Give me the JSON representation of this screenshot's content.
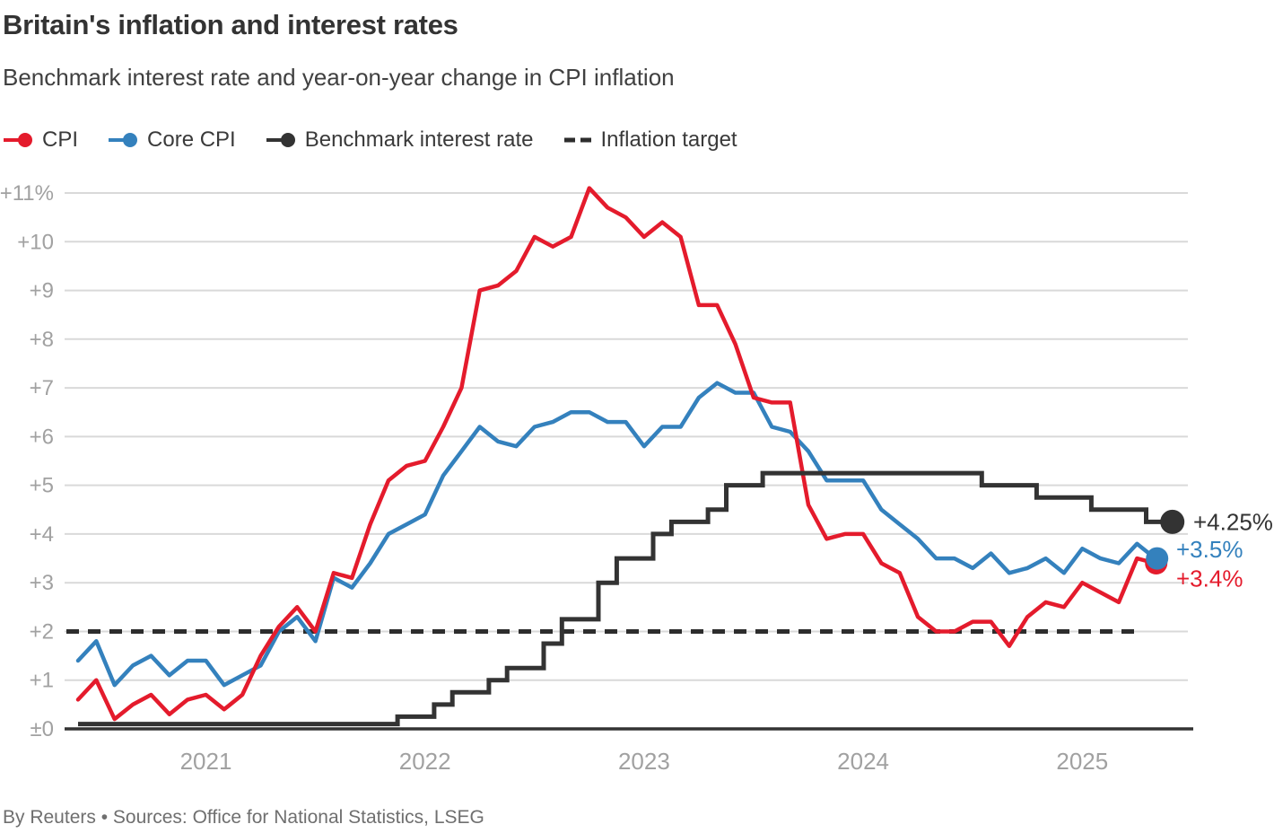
{
  "header": {
    "title": "Britain's inflation and interest rates",
    "subtitle": "Benchmark interest rate and year-on-year change in CPI inflation"
  },
  "legend": [
    {
      "label": "CPI",
      "color": "#e41b2c",
      "marker": "line-dot"
    },
    {
      "label": "Core CPI",
      "color": "#3481bd",
      "marker": "line-dot"
    },
    {
      "label": "Benchmark interest rate",
      "color": "#333333",
      "marker": "line-dot"
    },
    {
      "label": "Inflation target",
      "color": "#2d2d2d",
      "marker": "dashes"
    }
  ],
  "footer": {
    "credit": "By Reuters • Sources: Office for National Statistics, LSEG"
  },
  "chart_data": {
    "type": "line",
    "x_domain": {
      "start": "2020-06",
      "end": "2025-05",
      "freq": "monthly"
    },
    "ylim": [
      0,
      11
    ],
    "grid": "horizontal",
    "y_ticks": [
      "+11%",
      "+10",
      "+9",
      "+8",
      "+7",
      "+6",
      "+5",
      "+4",
      "+3",
      "+2",
      "+1",
      "±0"
    ],
    "x_ticks": [
      {
        "label": "2021",
        "month_index": 7
      },
      {
        "label": "2022",
        "month_index": 19
      },
      {
        "label": "2023",
        "month_index": 31
      },
      {
        "label": "2024",
        "month_index": 43
      },
      {
        "label": "2025",
        "month_index": 55
      }
    ],
    "series": [
      {
        "name": "CPI",
        "color": "#e41b2c",
        "style": "line",
        "end_dot": true,
        "values": [
          0.6,
          1.0,
          0.2,
          0.5,
          0.7,
          0.3,
          0.6,
          0.7,
          0.4,
          0.7,
          1.5,
          2.1,
          2.5,
          2.0,
          3.2,
          3.1,
          4.2,
          5.1,
          5.4,
          5.5,
          6.2,
          7.0,
          9.0,
          9.1,
          9.4,
          10.1,
          9.9,
          10.1,
          11.1,
          10.7,
          10.5,
          10.1,
          10.4,
          10.1,
          8.7,
          8.7,
          7.9,
          6.8,
          6.7,
          6.7,
          4.6,
          3.9,
          4.0,
          4.0,
          3.4,
          3.2,
          2.3,
          2.0,
          2.0,
          2.2,
          2.2,
          1.7,
          2.3,
          2.6,
          2.5,
          3.0,
          2.8,
          2.6,
          3.5,
          3.4
        ]
      },
      {
        "name": "Core CPI",
        "color": "#3481bd",
        "style": "line",
        "end_dot": true,
        "values": [
          1.4,
          1.8,
          0.9,
          1.3,
          1.5,
          1.1,
          1.4,
          1.4,
          0.9,
          1.1,
          1.3,
          2.0,
          2.3,
          1.8,
          3.1,
          2.9,
          3.4,
          4.0,
          4.2,
          4.4,
          5.2,
          5.7,
          6.2,
          5.9,
          5.8,
          6.2,
          6.3,
          6.5,
          6.5,
          6.3,
          6.3,
          5.8,
          6.2,
          6.2,
          6.8,
          7.1,
          6.9,
          6.9,
          6.2,
          6.1,
          5.7,
          5.1,
          5.1,
          5.1,
          4.5,
          4.2,
          3.9,
          3.5,
          3.5,
          3.3,
          3.6,
          3.2,
          3.3,
          3.5,
          3.2,
          3.7,
          3.5,
          3.4,
          3.8,
          3.5
        ]
      },
      {
        "name": "Benchmark interest rate",
        "color": "#333333",
        "style": "step",
        "end_dot": true,
        "values": [
          0.1,
          0.1,
          0.1,
          0.1,
          0.1,
          0.1,
          0.1,
          0.1,
          0.1,
          0.1,
          0.1,
          0.1,
          0.1,
          0.1,
          0.1,
          0.1,
          0.1,
          0.1,
          0.25,
          0.25,
          0.5,
          0.75,
          0.75,
          1.0,
          1.25,
          1.25,
          1.75,
          2.25,
          2.25,
          3.0,
          3.5,
          3.5,
          4.0,
          4.25,
          4.25,
          4.5,
          5.0,
          5.0,
          5.25,
          5.25,
          5.25,
          5.25,
          5.25,
          5.25,
          5.25,
          5.25,
          5.25,
          5.25,
          5.25,
          5.25,
          5.0,
          5.0,
          5.0,
          4.75,
          4.75,
          4.75,
          4.5,
          4.5,
          4.5,
          4.25
        ]
      }
    ],
    "target_line": {
      "label": "Inflation target",
      "value": 2,
      "style": "dashed",
      "color": "#2d2d2d"
    },
    "end_labels": [
      {
        "text": "+4.25%",
        "series": "Benchmark interest rate",
        "color": "#333333"
      },
      {
        "text": "+3.5%",
        "series": "Core CPI",
        "color": "#3481bd"
      },
      {
        "text": "+3.4%",
        "series": "CPI",
        "color": "#e41b2c"
      }
    ],
    "legend_position": "top"
  }
}
